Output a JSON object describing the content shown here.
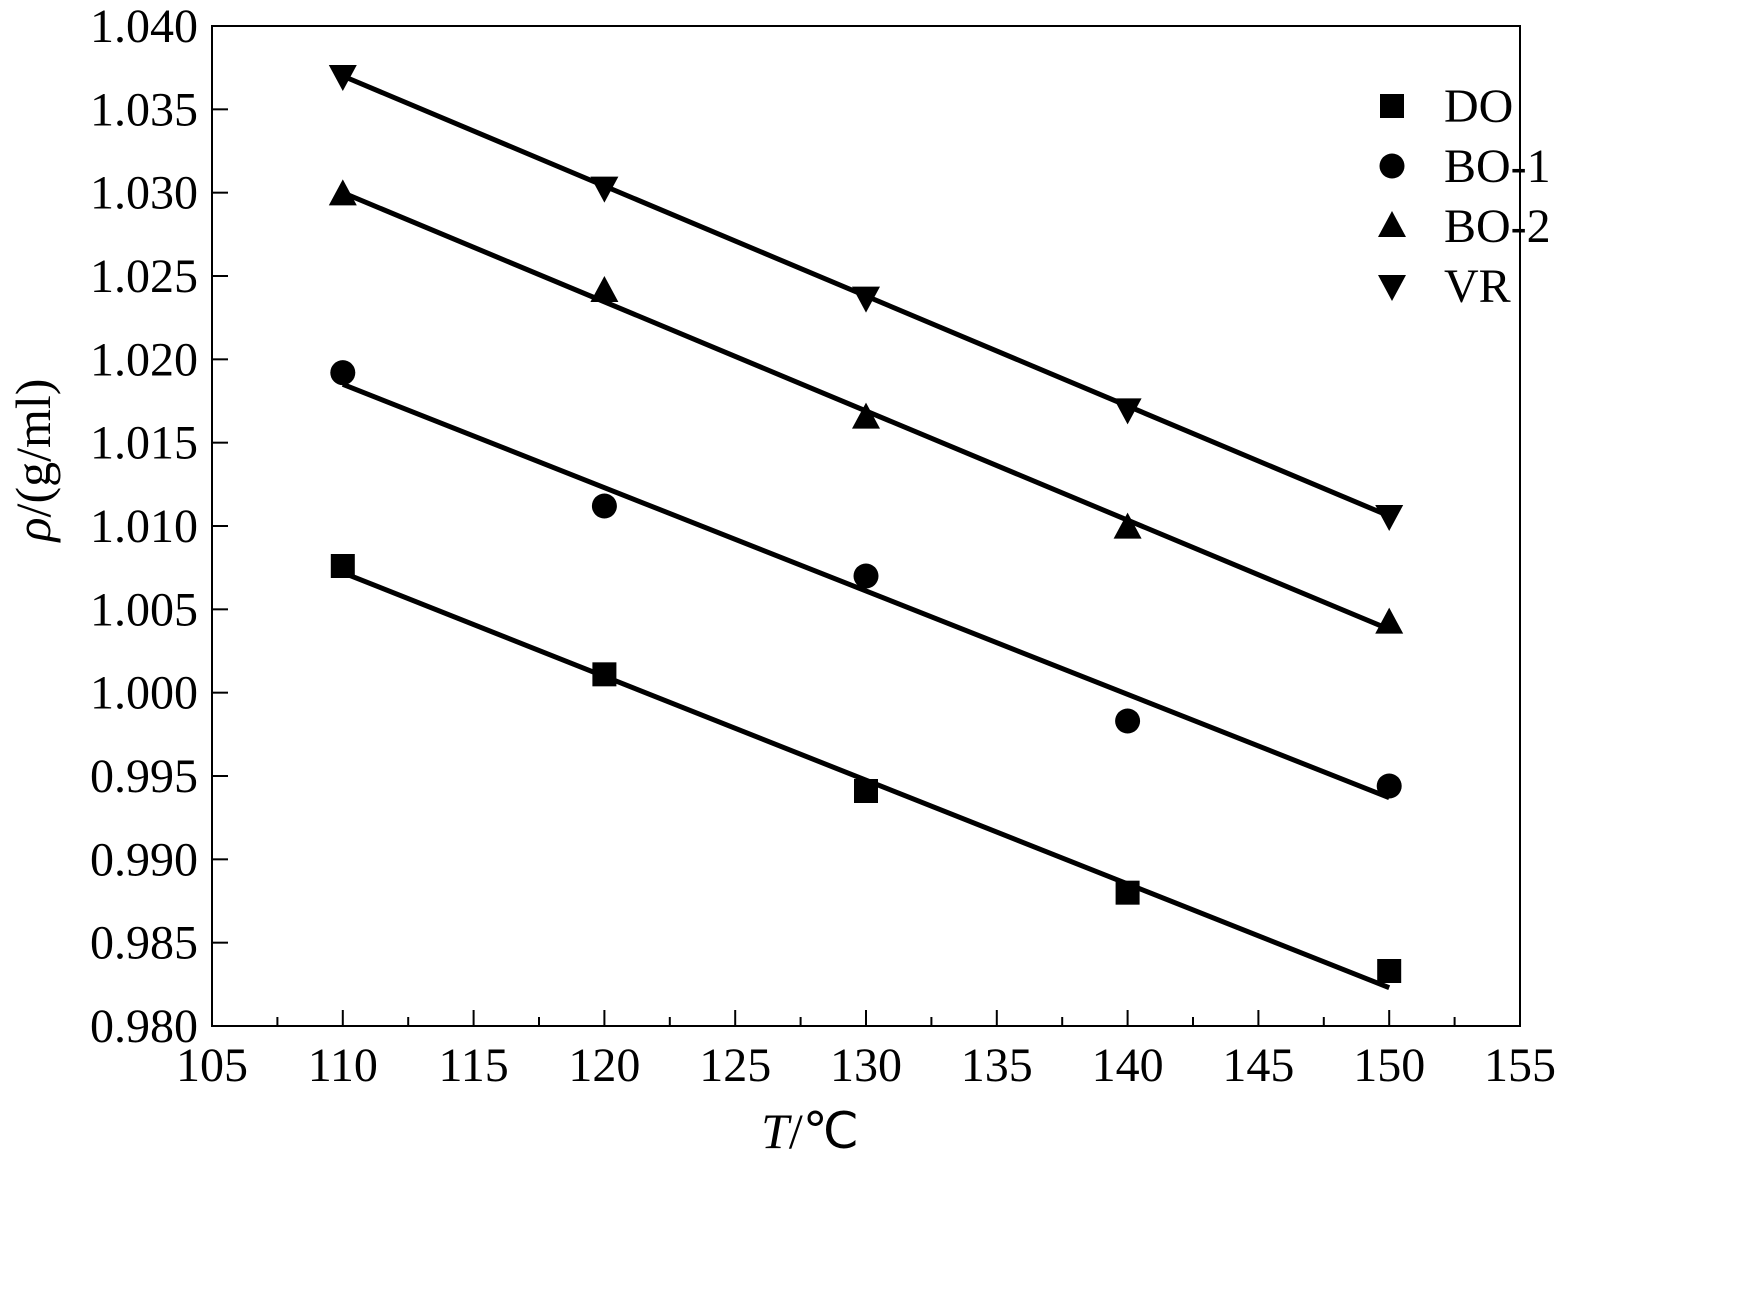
{
  "chart_data": {
    "type": "scatter",
    "xlabel_var": "T",
    "xlabel_unit": "/℃",
    "ylabel_var": "ρ",
    "ylabel_unit": "/(g/ml)",
    "xlim": [
      105,
      155
    ],
    "ylim": [
      0.98,
      1.04
    ],
    "x_ticks": [
      "105",
      "110",
      "115",
      "120",
      "125",
      "130",
      "135",
      "140",
      "145",
      "150",
      "155"
    ],
    "y_ticks": [
      "0.980",
      "0.985",
      "0.990",
      "0.995",
      "1.000",
      "1.005",
      "1.010",
      "1.015",
      "1.020",
      "1.025",
      "1.030",
      "1.035",
      "1.040"
    ],
    "grid": false,
    "legend_position": "top-right",
    "series": [
      {
        "name": "DO",
        "marker": "square",
        "x": [
          110,
          120,
          130,
          140,
          150
        ],
        "y": [
          1.0076,
          1.0011,
          0.9941,
          0.988,
          0.9833
        ],
        "fit": [
          [
            110,
            1.0072
          ],
          [
            150,
            0.9823
          ]
        ]
      },
      {
        "name": "BO-1",
        "marker": "circle",
        "x": [
          110,
          120,
          130,
          140,
          150
        ],
        "y": [
          1.0192,
          1.0112,
          1.007,
          0.9983,
          0.9944
        ],
        "fit": [
          [
            110,
            1.0185
          ],
          [
            150,
            0.9937
          ]
        ]
      },
      {
        "name": "BO-2",
        "marker": "triangle-up",
        "x": [
          110,
          120,
          130,
          140,
          150
        ],
        "y": [
          1.0299,
          1.0241,
          1.0165,
          1.0099,
          1.0042
        ],
        "fit": [
          [
            110,
            1.03
          ],
          [
            150,
            1.0038
          ]
        ]
      },
      {
        "name": "VR",
        "marker": "triangle-down",
        "x": [
          110,
          120,
          130,
          140,
          150
        ],
        "y": [
          1.037,
          1.0303,
          1.0237,
          1.017,
          1.0106
        ],
        "fit": [
          [
            110,
            1.037
          ],
          [
            150,
            1.0106
          ]
        ]
      }
    ]
  },
  "colors": {
    "ink": "#000000",
    "background": "#ffffff"
  }
}
